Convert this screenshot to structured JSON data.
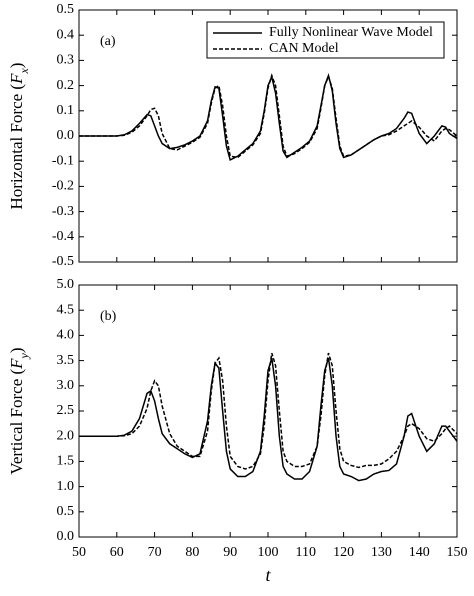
{
  "chart_data": [
    {
      "type": "line",
      "ylabel": [
        "Horizontal Force (",
        "F",
        "x",
        ")"
      ],
      "annotation": "(a)",
      "legend": "upper right",
      "x": [
        50,
        52,
        54,
        56,
        58,
        60,
        62,
        64,
        66,
        68,
        69,
        70,
        71,
        72,
        74,
        76,
        78,
        80,
        82,
        84,
        85,
        86,
        87,
        88,
        89,
        90,
        92,
        94,
        96,
        98,
        99,
        100,
        101,
        102,
        103,
        104,
        105,
        107,
        109,
        111,
        113,
        114,
        115,
        116,
        117,
        118,
        119,
        120,
        122,
        124,
        126,
        128,
        130,
        132,
        134,
        136,
        137,
        138,
        140,
        142,
        144,
        146,
        147,
        148,
        150
      ],
      "series": [
        {
          "name": "Fully Nonlinear Wave Model",
          "color": "#000000",
          "dash": "solid",
          "values": [
            0,
            0,
            0,
            0,
            0,
            0,
            0.005,
            0.02,
            0.05,
            0.085,
            0.08,
            0.04,
            0.0,
            -0.03,
            -0.05,
            -0.045,
            -0.035,
            -0.02,
            0.0,
            0.06,
            0.14,
            0.195,
            0.19,
            0.08,
            -0.04,
            -0.095,
            -0.08,
            -0.055,
            -0.03,
            0.02,
            0.1,
            0.2,
            0.235,
            0.17,
            0.05,
            -0.06,
            -0.085,
            -0.065,
            -0.045,
            -0.02,
            0.04,
            0.12,
            0.2,
            0.24,
            0.18,
            0.05,
            -0.05,
            -0.085,
            -0.075,
            -0.055,
            -0.035,
            -0.015,
            0.0,
            0.01,
            0.03,
            0.07,
            0.095,
            0.09,
            0.01,
            -0.03,
            0.0,
            0.04,
            0.035,
            0.01,
            -0.01
          ]
        },
        {
          "name": "CAN Model",
          "color": "#000000",
          "dash": "dashed",
          "values": [
            0,
            0,
            0,
            0,
            0,
            0,
            0.003,
            0.015,
            0.04,
            0.08,
            0.105,
            0.11,
            0.08,
            0.01,
            -0.05,
            -0.055,
            -0.04,
            -0.025,
            -0.005,
            0.05,
            0.13,
            0.19,
            0.2,
            0.12,
            0.0,
            -0.08,
            -0.085,
            -0.06,
            -0.035,
            0.01,
            0.09,
            0.19,
            0.24,
            0.2,
            0.08,
            -0.04,
            -0.08,
            -0.07,
            -0.05,
            -0.025,
            0.03,
            0.11,
            0.2,
            0.235,
            0.19,
            0.07,
            -0.04,
            -0.08,
            -0.075,
            -0.055,
            -0.035,
            -0.015,
            0.0,
            0.005,
            0.02,
            0.04,
            0.05,
            0.06,
            0.035,
            0.0,
            -0.02,
            0.02,
            0.03,
            0.025,
            0.0
          ]
        }
      ],
      "xlim": [
        50,
        150
      ],
      "xticks": [
        50,
        60,
        70,
        80,
        90,
        100,
        110,
        120,
        130,
        140,
        150
      ],
      "ylim": [
        -0.5,
        0.5
      ],
      "yticks": [
        0.5,
        0.4,
        0.3,
        0.2,
        0.1,
        {
          "value": 0,
          "label": "0.0"
        },
        -0.1,
        -0.2,
        -0.3,
        -0.4,
        -0.5
      ]
    },
    {
      "type": "line",
      "ylabel": [
        "Vertical Force (",
        "F",
        "y",
        ")"
      ],
      "annotation": "(b)",
      "xlabel": "t",
      "x": [
        50,
        52,
        54,
        56,
        58,
        60,
        62,
        64,
        66,
        68,
        69,
        70,
        71,
        72,
        74,
        76,
        78,
        80,
        82,
        84,
        85,
        86,
        87,
        88,
        89,
        90,
        92,
        94,
        96,
        98,
        99,
        100,
        101,
        102,
        103,
        104,
        105,
        107,
        109,
        111,
        113,
        114,
        115,
        116,
        117,
        118,
        119,
        120,
        122,
        124,
        126,
        128,
        130,
        132,
        134,
        136,
        137,
        138,
        140,
        142,
        144,
        146,
        147,
        148,
        150
      ],
      "series": [
        {
          "color": "#000000",
          "dash": "solid",
          "values": [
            2,
            2,
            2,
            2,
            2,
            2,
            2.02,
            2.1,
            2.35,
            2.85,
            2.9,
            2.7,
            2.35,
            2.05,
            1.85,
            1.75,
            1.65,
            1.58,
            1.65,
            2.3,
            3.0,
            3.45,
            3.35,
            2.5,
            1.7,
            1.35,
            1.2,
            1.2,
            1.3,
            1.7,
            2.4,
            3.3,
            3.55,
            3.0,
            2.0,
            1.4,
            1.25,
            1.15,
            1.15,
            1.3,
            1.8,
            2.6,
            3.3,
            3.55,
            3.0,
            2.0,
            1.4,
            1.25,
            1.2,
            1.12,
            1.15,
            1.25,
            1.3,
            1.32,
            1.45,
            2.0,
            2.4,
            2.45,
            2.0,
            1.7,
            1.85,
            2.2,
            2.2,
            2.1,
            1.9
          ]
        },
        {
          "color": "#000000",
          "dash": "dashed",
          "values": [
            2,
            2,
            2,
            2,
            2,
            2,
            2.01,
            2.05,
            2.2,
            2.55,
            2.9,
            3.1,
            3.0,
            2.6,
            2.05,
            1.8,
            1.7,
            1.6,
            1.6,
            2.1,
            2.9,
            3.45,
            3.55,
            3.1,
            2.2,
            1.6,
            1.4,
            1.35,
            1.4,
            1.65,
            2.2,
            3.1,
            3.65,
            3.4,
            2.5,
            1.7,
            1.5,
            1.4,
            1.4,
            1.45,
            1.8,
            2.4,
            3.2,
            3.65,
            3.4,
            2.5,
            1.75,
            1.5,
            1.42,
            1.38,
            1.42,
            1.42,
            1.45,
            1.55,
            1.7,
            2.0,
            2.2,
            2.25,
            2.15,
            1.95,
            1.9,
            2.05,
            2.15,
            2.2,
            2.05
          ]
        }
      ],
      "xlim": [
        50,
        150
      ],
      "xticks": [
        50,
        60,
        70,
        80,
        90,
        100,
        110,
        120,
        130,
        140,
        150
      ],
      "ylim": [
        0,
        5
      ],
      "yticks": [
        {
          "value": 5,
          "label": "5.0"
        },
        4.5,
        {
          "value": 4,
          "label": "4.0"
        },
        3.5,
        {
          "value": 3,
          "label": "3.0"
        },
        2.5,
        {
          "value": 2,
          "label": "2.0"
        },
        1.5,
        {
          "value": 1,
          "label": "1.0"
        },
        0.5,
        {
          "value": 0,
          "label": "0.0"
        }
      ]
    }
  ]
}
